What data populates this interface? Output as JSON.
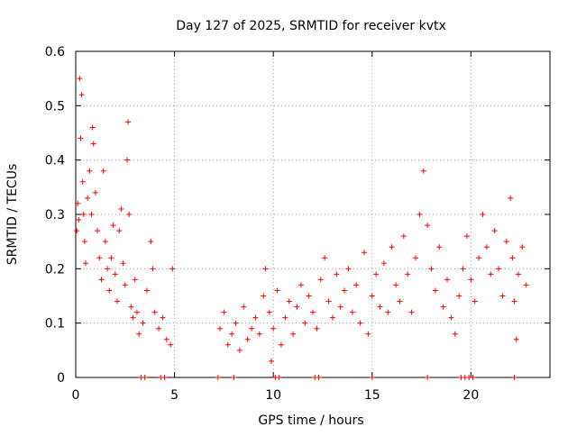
{
  "chart_data": {
    "type": "scatter",
    "title": "Day 127 of 2025, SRMTID for receiver kvtx",
    "xlabel": "GPS time / hours",
    "ylabel": "SRMTID / TECUs",
    "xlim": [
      0,
      24
    ],
    "ylim": [
      0,
      0.6
    ],
    "xticks": [
      0,
      5,
      10,
      15,
      20
    ],
    "xtick_labels": [
      "0",
      "5",
      "10",
      "15",
      "20"
    ],
    "yticks": [
      0,
      0.1,
      0.2,
      0.3,
      0.4,
      0.5,
      0.6
    ],
    "ytick_labels": [
      "0",
      "0.1",
      "0.2",
      "0.3",
      "0.4",
      "0.5",
      "0.6"
    ],
    "grid": true,
    "legend": "none",
    "marker": "+",
    "series": [
      {
        "name": "SRMTID",
        "color": "#ff0000",
        "points": [
          [
            0.05,
            0.27
          ],
          [
            0.1,
            0.32
          ],
          [
            0.15,
            0.29
          ],
          [
            0.2,
            0.55
          ],
          [
            0.25,
            0.44
          ],
          [
            0.3,
            0.52
          ],
          [
            0.35,
            0.36
          ],
          [
            0.4,
            0.3
          ],
          [
            0.45,
            0.25
          ],
          [
            0.5,
            0.21
          ],
          [
            0.6,
            0.33
          ],
          [
            0.7,
            0.38
          ],
          [
            0.8,
            0.3
          ],
          [
            0.85,
            0.46
          ],
          [
            0.9,
            0.43
          ],
          [
            1.0,
            0.34
          ],
          [
            1.1,
            0.27
          ],
          [
            1.2,
            0.22
          ],
          [
            1.3,
            0.18
          ],
          [
            1.4,
            0.38
          ],
          [
            1.5,
            0.25
          ],
          [
            1.6,
            0.2
          ],
          [
            1.7,
            0.16
          ],
          [
            1.8,
            0.22
          ],
          [
            1.9,
            0.28
          ],
          [
            2.0,
            0.19
          ],
          [
            2.1,
            0.14
          ],
          [
            2.2,
            0.27
          ],
          [
            2.3,
            0.31
          ],
          [
            2.4,
            0.21
          ],
          [
            2.5,
            0.17
          ],
          [
            2.6,
            0.4
          ],
          [
            2.65,
            0.47
          ],
          [
            2.7,
            0.3
          ],
          [
            2.8,
            0.13
          ],
          [
            2.9,
            0.11
          ],
          [
            3.0,
            0.18
          ],
          [
            3.1,
            0.12
          ],
          [
            3.2,
            0.08
          ],
          [
            3.4,
            0.1
          ],
          [
            3.6,
            0.16
          ],
          [
            3.8,
            0.25
          ],
          [
            3.9,
            0.2
          ],
          [
            4.0,
            0.12
          ],
          [
            4.2,
            0.09
          ],
          [
            4.4,
            0.11
          ],
          [
            4.6,
            0.07
          ],
          [
            4.8,
            0.06
          ],
          [
            4.9,
            0.2
          ],
          [
            7.3,
            0.09
          ],
          [
            7.5,
            0.12
          ],
          [
            7.7,
            0.06
          ],
          [
            7.9,
            0.08
          ],
          [
            8.1,
            0.1
          ],
          [
            8.3,
            0.05
          ],
          [
            8.5,
            0.13
          ],
          [
            8.7,
            0.07
          ],
          [
            8.9,
            0.09
          ],
          [
            9.1,
            0.11
          ],
          [
            9.3,
            0.08
          ],
          [
            9.5,
            0.15
          ],
          [
            9.6,
            0.2
          ],
          [
            9.8,
            0.12
          ],
          [
            9.9,
            0.03
          ],
          [
            10.0,
            0.09
          ],
          [
            10.2,
            0.16
          ],
          [
            10.4,
            0.06
          ],
          [
            10.6,
            0.11
          ],
          [
            10.8,
            0.14
          ],
          [
            11.0,
            0.08
          ],
          [
            11.2,
            0.13
          ],
          [
            11.4,
            0.17
          ],
          [
            11.6,
            0.1
          ],
          [
            11.8,
            0.15
          ],
          [
            12.0,
            0.12
          ],
          [
            12.2,
            0.09
          ],
          [
            12.4,
            0.18
          ],
          [
            12.6,
            0.22
          ],
          [
            12.8,
            0.14
          ],
          [
            13.0,
            0.11
          ],
          [
            13.2,
            0.19
          ],
          [
            13.4,
            0.13
          ],
          [
            13.6,
            0.16
          ],
          [
            13.8,
            0.2
          ],
          [
            14.0,
            0.12
          ],
          [
            14.2,
            0.17
          ],
          [
            14.4,
            0.1
          ],
          [
            14.6,
            0.23
          ],
          [
            14.8,
            0.08
          ],
          [
            15.0,
            0.15
          ],
          [
            15.2,
            0.19
          ],
          [
            15.4,
            0.13
          ],
          [
            15.6,
            0.21
          ],
          [
            15.8,
            0.12
          ],
          [
            16.0,
            0.24
          ],
          [
            16.2,
            0.17
          ],
          [
            16.4,
            0.14
          ],
          [
            16.6,
            0.26
          ],
          [
            16.8,
            0.19
          ],
          [
            17.0,
            0.12
          ],
          [
            17.2,
            0.22
          ],
          [
            17.4,
            0.3
          ],
          [
            17.6,
            0.38
          ],
          [
            17.8,
            0.28
          ],
          [
            18.0,
            0.2
          ],
          [
            18.2,
            0.16
          ],
          [
            18.4,
            0.24
          ],
          [
            18.6,
            0.13
          ],
          [
            18.8,
            0.18
          ],
          [
            19.0,
            0.11
          ],
          [
            19.2,
            0.08
          ],
          [
            19.4,
            0.15
          ],
          [
            19.6,
            0.2
          ],
          [
            19.8,
            0.26
          ],
          [
            20.0,
            0.18
          ],
          [
            20.2,
            0.14
          ],
          [
            20.4,
            0.22
          ],
          [
            20.6,
            0.3
          ],
          [
            20.8,
            0.24
          ],
          [
            21.0,
            0.19
          ],
          [
            21.2,
            0.27
          ],
          [
            21.4,
            0.2
          ],
          [
            21.6,
            0.15
          ],
          [
            21.8,
            0.25
          ],
          [
            22.0,
            0.33
          ],
          [
            22.1,
            0.22
          ],
          [
            22.2,
            0.14
          ],
          [
            22.3,
            0.07
          ],
          [
            22.4,
            0.19
          ],
          [
            22.6,
            0.24
          ],
          [
            22.8,
            0.17
          ]
        ],
        "zero_points": [
          3.3,
          3.5,
          4.3,
          4.5,
          7.2,
          8.0,
          10.1,
          10.3,
          12.1,
          12.3,
          15.0,
          17.8,
          19.5,
          19.7,
          19.9,
          20.1,
          22.2
        ]
      }
    ]
  }
}
